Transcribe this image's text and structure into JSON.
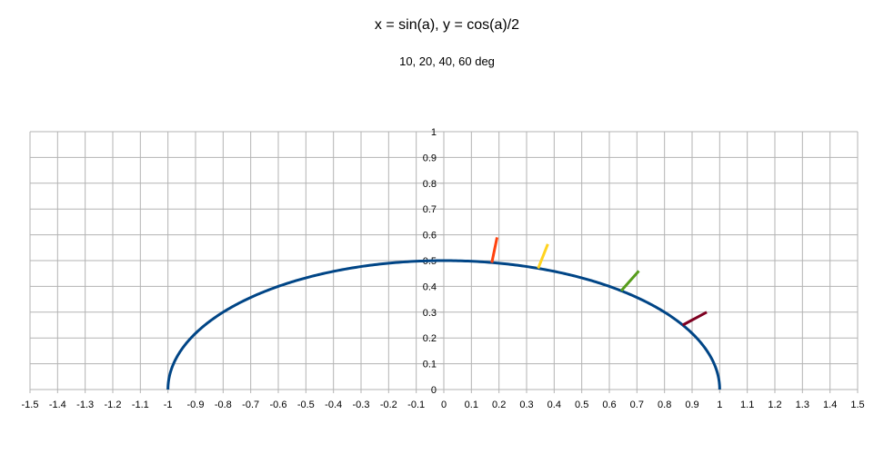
{
  "chart_data": {
    "type": "scatter",
    "title": "x = sin(a), y = cos(a)/2",
    "subtitle": "10, 20, 40, 60 deg",
    "xlim": [
      -1.5,
      1.5
    ],
    "ylim": [
      0,
      1
    ],
    "x_ticks": [
      "-1.5",
      "-1.4",
      "-1.3",
      "-1.2",
      "-1.1",
      "-1",
      "-0.9",
      "-0.8",
      "-0.7",
      "-0.6",
      "-0.5",
      "-0.4",
      "-0.3",
      "-0.2",
      "-0.1",
      "0",
      "0.1",
      "0.2",
      "0.3",
      "0.4",
      "0.5",
      "0.6",
      "0.7",
      "0.8",
      "0.9",
      "1",
      "1.1",
      "1.2",
      "1.3",
      "1.4",
      "1.5"
    ],
    "y_ticks": [
      "0",
      "0.1",
      "0.2",
      "0.3",
      "0.4",
      "0.5",
      "0.6",
      "0.7",
      "0.8",
      "0.9",
      "1"
    ],
    "grid": true,
    "colors": {
      "curve": "#004586",
      "grid": "#b3b3b3",
      "axis": "#b3b3b3"
    },
    "curve": {
      "equation": "x = sin(a), y = cos(a)/2",
      "a_range_deg": [
        -90,
        90
      ],
      "color": "#004586"
    },
    "segments": [
      {
        "angle_deg": 10,
        "x": [
          0.174,
          0.193
        ],
        "y": [
          0.492,
          0.59
        ],
        "color": "#ff420e"
      },
      {
        "angle_deg": 20,
        "x": [
          0.342,
          0.377
        ],
        "y": [
          0.47,
          0.564
        ],
        "color": "#ffd320"
      },
      {
        "angle_deg": 40,
        "x": [
          0.643,
          0.707
        ],
        "y": [
          0.383,
          0.46
        ],
        "color": "#579d1c"
      },
      {
        "angle_deg": 60,
        "x": [
          0.866,
          0.953
        ],
        "y": [
          0.25,
          0.3
        ],
        "color": "#7e0021"
      }
    ]
  }
}
